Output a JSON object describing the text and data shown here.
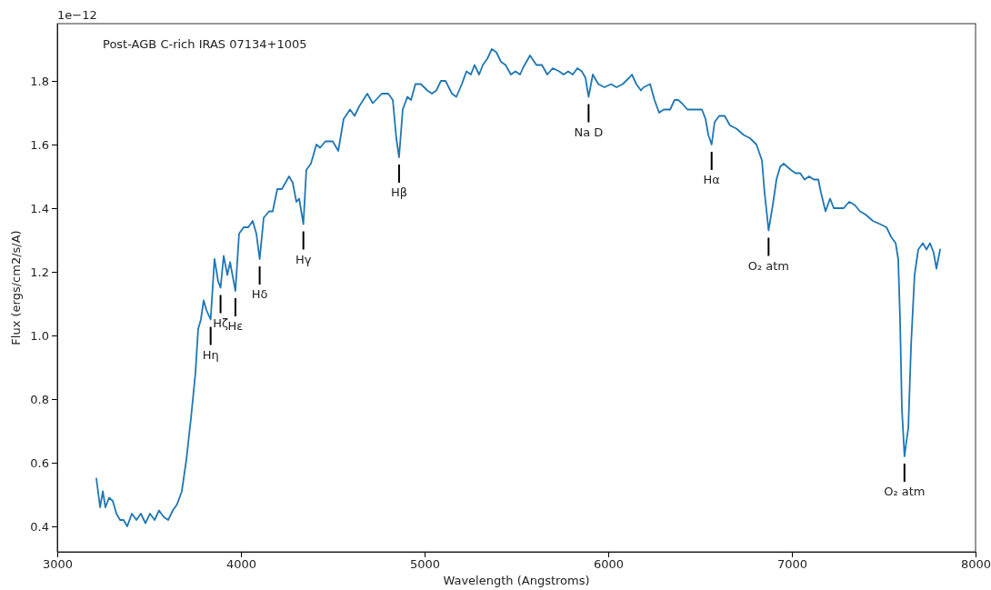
{
  "chart_data": {
    "type": "line",
    "title": "Post-AGB C-rich IRAS 07134+1005",
    "xlabel": "Wavelength (Angstroms)",
    "ylabel": "Flux (ergs/cm2/s/A)",
    "xlim": [
      3000,
      8000
    ],
    "xticks": [
      3000,
      4000,
      5000,
      6000,
      7000,
      8000
    ],
    "ylim": [
      0.32,
      1.98
    ],
    "yticks": [
      0.4,
      0.6,
      0.8,
      {
        "value": 1,
        "label": "1.0"
      },
      1.2,
      1.4,
      1.6,
      1.8
    ],
    "grid": false,
    "marker": "none",
    "line_style": "solid",
    "annotations": [
      "1e−12",
      {
        "text": "Hη",
        "x": 3835,
        "y": 1.05
      },
      {
        "text": "Hζ",
        "x": 3889,
        "y": 1.15
      },
      {
        "text": "Hε",
        "x": 3970,
        "y": 1.14
      },
      {
        "text": "Hδ",
        "x": 4102,
        "y": 1.24
      },
      {
        "text": "Hγ",
        "x": 4340,
        "y": 1.35
      },
      {
        "text": "Hβ",
        "x": 4861,
        "y": 1.56
      },
      {
        "text": "Na D",
        "x": 5893,
        "y": 1.75
      },
      {
        "text": "Hα",
        "x": 6563,
        "y": 1.6
      },
      {
        "text": "O₂ atm",
        "x": 6873,
        "y": 1.33
      },
      {
        "text": "O₂ atm",
        "x": 7613,
        "y": 0.62
      }
    ],
    "series": [
      {
        "color": "#1f77b4",
        "x": [
          3213,
          3233,
          3248,
          3262,
          3282,
          3302,
          3322,
          3342,
          3361,
          3381,
          3406,
          3431,
          3455,
          3480,
          3505,
          3530,
          3554,
          3579,
          3604,
          3629,
          3653,
          3678,
          3703,
          3728,
          3752,
          3767,
          3782,
          3797,
          3812,
          3835,
          3856,
          3876,
          3889,
          3906,
          3926,
          3941,
          3970,
          3990,
          4015,
          4040,
          4064,
          4084,
          4102,
          4124,
          4153,
          4173,
          4198,
          4223,
          4262,
          4282,
          4302,
          4317,
          4340,
          4356,
          4381,
          4411,
          4431,
          4460,
          4500,
          4530,
          4559,
          4594,
          4619,
          4644,
          4688,
          4718,
          4767,
          4802,
          4827,
          4846,
          4861,
          4881,
          4906,
          4926,
          4950,
          4980,
          5015,
          5040,
          5064,
          5089,
          5114,
          5149,
          5173,
          5203,
          5228,
          5252,
          5272,
          5297,
          5317,
          5342,
          5366,
          5391,
          5416,
          5441,
          5470,
          5495,
          5520,
          5535,
          5574,
          5609,
          5639,
          5668,
          5698,
          5733,
          5757,
          5782,
          5807,
          5832,
          5856,
          5876,
          5893,
          5916,
          5946,
          5980,
          6015,
          6045,
          6079,
          6114,
          6129,
          6153,
          6178,
          6193,
          6228,
          6252,
          6277,
          6302,
          6337,
          6361,
          6381,
          6401,
          6431,
          6460,
          6485,
          6510,
          6530,
          6545,
          6563,
          6579,
          6604,
          6634,
          6663,
          6698,
          6738,
          6772,
          6807,
          6837,
          6851,
          6866,
          6873,
          6896,
          6916,
          6936,
          6955,
          6975,
          6995,
          7020,
          7045,
          7069,
          7094,
          7119,
          7144,
          7158,
          7183,
          7208,
          7228,
          7252,
          7282,
          7312,
          7342,
          7371,
          7401,
          7441,
          7480,
          7515,
          7540,
          7565,
          7579,
          7589,
          7599,
          7613,
          7622,
          7634,
          7649,
          7668,
          7688,
          7713,
          7733,
          7752,
          7772,
          7787,
          7807
        ],
        "values": [
          0.55,
          0.46,
          0.51,
          0.46,
          0.49,
          0.48,
          0.44,
          0.42,
          0.42,
          0.4,
          0.44,
          0.42,
          0.44,
          0.41,
          0.44,
          0.42,
          0.45,
          0.43,
          0.42,
          0.45,
          0.47,
          0.51,
          0.61,
          0.74,
          0.88,
          1.02,
          1.05,
          1.11,
          1.08,
          1.05,
          1.24,
          1.17,
          1.15,
          1.25,
          1.19,
          1.23,
          1.14,
          1.32,
          1.34,
          1.34,
          1.36,
          1.32,
          1.24,
          1.37,
          1.39,
          1.39,
          1.46,
          1.46,
          1.5,
          1.48,
          1.42,
          1.43,
          1.35,
          1.52,
          1.54,
          1.6,
          1.59,
          1.61,
          1.61,
          1.58,
          1.68,
          1.71,
          1.69,
          1.72,
          1.76,
          1.73,
          1.76,
          1.76,
          1.74,
          1.62,
          1.56,
          1.71,
          1.75,
          1.74,
          1.79,
          1.79,
          1.77,
          1.76,
          1.77,
          1.8,
          1.8,
          1.76,
          1.75,
          1.79,
          1.83,
          1.82,
          1.85,
          1.82,
          1.85,
          1.87,
          1.9,
          1.89,
          1.86,
          1.85,
          1.82,
          1.83,
          1.82,
          1.84,
          1.88,
          1.85,
          1.85,
          1.82,
          1.84,
          1.83,
          1.82,
          1.83,
          1.82,
          1.84,
          1.83,
          1.81,
          1.75,
          1.82,
          1.79,
          1.78,
          1.79,
          1.78,
          1.79,
          1.81,
          1.82,
          1.79,
          1.77,
          1.78,
          1.79,
          1.74,
          1.7,
          1.71,
          1.71,
          1.74,
          1.74,
          1.73,
          1.71,
          1.71,
          1.71,
          1.71,
          1.68,
          1.63,
          1.6,
          1.67,
          1.69,
          1.69,
          1.66,
          1.65,
          1.63,
          1.62,
          1.6,
          1.55,
          1.45,
          1.37,
          1.33,
          1.41,
          1.49,
          1.53,
          1.54,
          1.53,
          1.52,
          1.51,
          1.51,
          1.49,
          1.5,
          1.49,
          1.49,
          1.45,
          1.39,
          1.43,
          1.4,
          1.4,
          1.4,
          1.42,
          1.41,
          1.39,
          1.38,
          1.36,
          1.35,
          1.34,
          1.31,
          1.29,
          1.24,
          1.05,
          0.77,
          0.62,
          0.66,
          0.71,
          0.97,
          1.19,
          1.27,
          1.29,
          1.27,
          1.29,
          1.26,
          1.21,
          1.27
        ]
      }
    ]
  }
}
